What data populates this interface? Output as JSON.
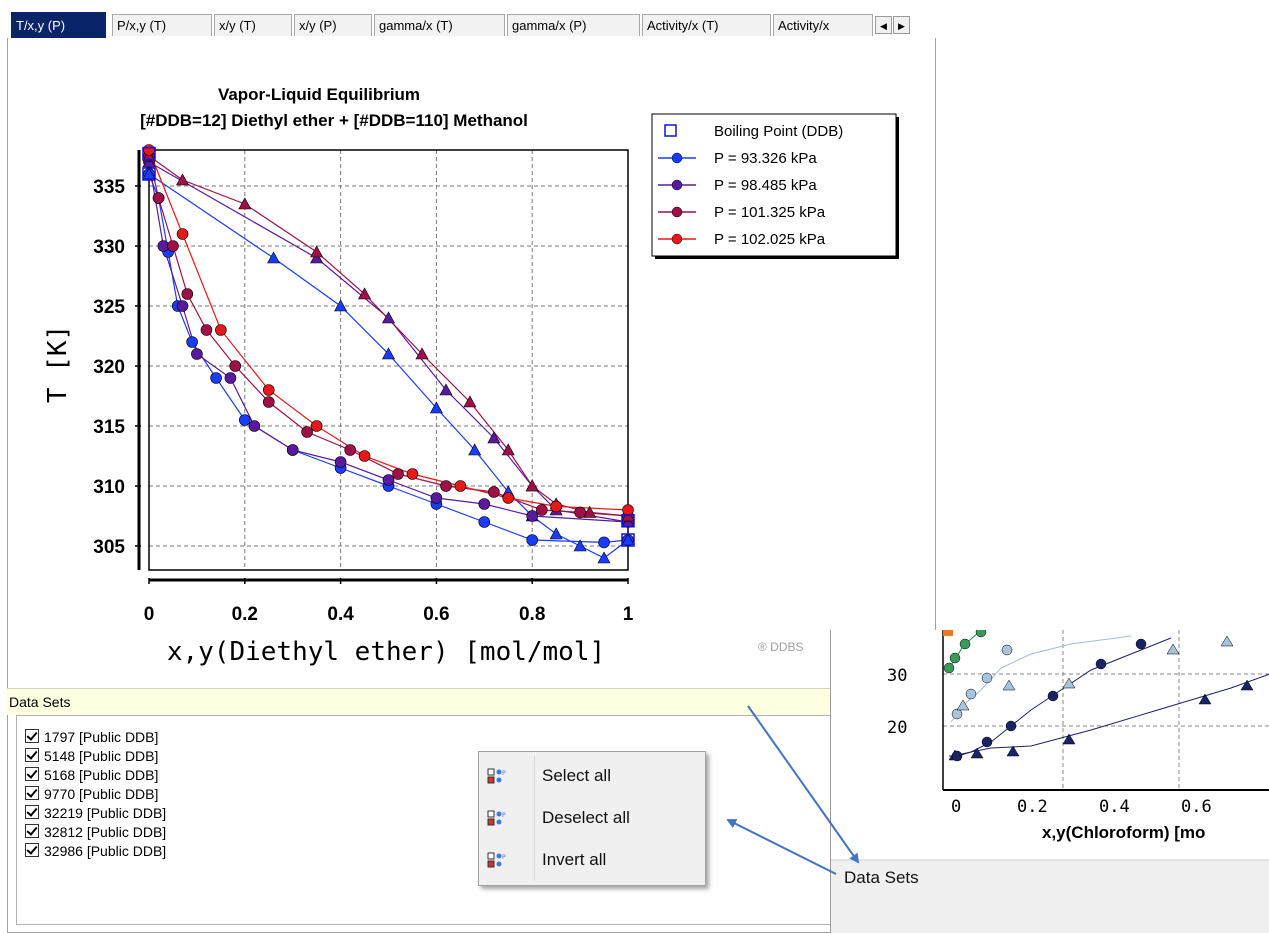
{
  "tabs": {
    "items": [
      "T/x,y (P)",
      "P/x,y (T)",
      "x/y (T)",
      "x/y (P)",
      "gamma/x (T)",
      "gamma/x (P)",
      "Activity/x (T)",
      "Activity/x"
    ],
    "active_index": 0,
    "scroll_left": "◀",
    "scroll_right": "▶"
  },
  "chart_data": {
    "type": "line",
    "title": "Vapor-Liquid Equilibrium",
    "subtitle": "[#DDB=12] Diethyl ether + [#DDB=110] Methanol",
    "xlabel": "x,y(Diethyl ether) [mol/mol]",
    "ylabel": "T [K]",
    "xlim": [
      0,
      1
    ],
    "ylim": [
      303,
      338
    ],
    "xticks": [
      "0",
      "0.2",
      "0.4",
      "0.6",
      "0.8",
      "1"
    ],
    "yticks": [
      "305",
      "310",
      "315",
      "320",
      "325",
      "330",
      "335"
    ],
    "grid": true,
    "legend_position": "top-right",
    "boiling_points": {
      "name": "Boiling Point (DDB)",
      "color": "#1010e0",
      "points": [
        [
          0,
          336
        ],
        [
          0,
          337.7
        ],
        [
          1,
          305.5
        ],
        [
          1,
          307.1
        ]
      ]
    },
    "series": [
      {
        "name": "P = 93.326 kPa",
        "color": "#1a3cff",
        "liquid": [
          [
            0,
            336
          ],
          [
            0.02,
            334
          ],
          [
            0.04,
            329.5
          ],
          [
            0.06,
            325
          ],
          [
            0.09,
            322
          ],
          [
            0.14,
            319
          ],
          [
            0.2,
            315.5
          ],
          [
            0.3,
            313
          ],
          [
            0.4,
            311.5
          ],
          [
            0.5,
            310
          ],
          [
            0.6,
            308.5
          ],
          [
            0.7,
            307
          ],
          [
            0.8,
            305.5
          ],
          [
            0.95,
            305.3
          ],
          [
            1,
            305.5
          ]
        ],
        "vapor": [
          [
            0,
            336
          ],
          [
            0.26,
            329
          ],
          [
            0.4,
            325
          ],
          [
            0.5,
            321
          ],
          [
            0.6,
            316.5
          ],
          [
            0.68,
            313
          ],
          [
            0.75,
            309.5
          ],
          [
            0.8,
            307.5
          ],
          [
            0.85,
            306
          ],
          [
            0.9,
            305
          ],
          [
            0.95,
            304
          ],
          [
            1,
            305.5
          ]
        ]
      },
      {
        "name": "P = 98.485 kPa",
        "color": "#5a1aa0",
        "liquid": [
          [
            0,
            337
          ],
          [
            0.03,
            330
          ],
          [
            0.07,
            325
          ],
          [
            0.1,
            321
          ],
          [
            0.17,
            319
          ],
          [
            0.22,
            315
          ],
          [
            0.3,
            313
          ],
          [
            0.4,
            312
          ],
          [
            0.5,
            310.5
          ],
          [
            0.6,
            309
          ],
          [
            0.7,
            308.5
          ],
          [
            0.8,
            307.5
          ],
          [
            1,
            307
          ]
        ],
        "vapor": [
          [
            0,
            337
          ],
          [
            0.35,
            329
          ],
          [
            0.5,
            324
          ],
          [
            0.62,
            318
          ],
          [
            0.72,
            314
          ],
          [
            0.8,
            310
          ],
          [
            0.85,
            308
          ],
          [
            1,
            307
          ]
        ]
      },
      {
        "name": "P = 101.325 kPa",
        "color": "#a01048",
        "liquid": [
          [
            0,
            337.5
          ],
          [
            0.02,
            334
          ],
          [
            0.05,
            330
          ],
          [
            0.08,
            326
          ],
          [
            0.12,
            323
          ],
          [
            0.18,
            320
          ],
          [
            0.25,
            317
          ],
          [
            0.33,
            314.5
          ],
          [
            0.42,
            313
          ],
          [
            0.52,
            311
          ],
          [
            0.62,
            310
          ],
          [
            0.72,
            309.5
          ],
          [
            0.82,
            308
          ],
          [
            0.9,
            307.8
          ],
          [
            1,
            307.5
          ]
        ],
        "vapor": [
          [
            0,
            337.5
          ],
          [
            0.07,
            335.5
          ],
          [
            0.2,
            333.5
          ],
          [
            0.35,
            329.5
          ],
          [
            0.45,
            326
          ],
          [
            0.57,
            321
          ],
          [
            0.67,
            317
          ],
          [
            0.75,
            313
          ],
          [
            0.8,
            310
          ],
          [
            0.85,
            308.5
          ],
          [
            0.92,
            307.8
          ],
          [
            1,
            307.5
          ]
        ]
      },
      {
        "name": "P = 102.025 kPa",
        "color": "#e81818",
        "liquid": [
          [
            0,
            338
          ],
          [
            0.07,
            331
          ],
          [
            0.15,
            323
          ],
          [
            0.25,
            318
          ],
          [
            0.35,
            315
          ],
          [
            0.45,
            312.5
          ],
          [
            0.55,
            311
          ],
          [
            0.65,
            310
          ],
          [
            0.75,
            309
          ],
          [
            0.85,
            308.3
          ],
          [
            1,
            308
          ]
        ],
        "vapor": []
      }
    ]
  },
  "watermark": "® DDBS",
  "datasets": {
    "header": "Data Sets",
    "items": [
      "1797 [Public DDB]",
      "5148 [Public DDB]",
      "5168 [Public DDB]",
      "9770 [Public DDB]",
      "32219 [Public DDB]",
      "32812 [Public DDB]",
      "32986 [Public DDB]"
    ]
  },
  "context_menu": {
    "items": [
      "Select all",
      "Deselect all",
      "Invert all"
    ]
  },
  "annotation_color": "#4472c4",
  "inset": {
    "label": "Data Sets",
    "xlabel": "x,y(Chloroform) [mo",
    "xticks": [
      "0",
      "0.2",
      "0.4",
      "0.6"
    ],
    "yticks": [
      "20",
      "30"
    ]
  }
}
